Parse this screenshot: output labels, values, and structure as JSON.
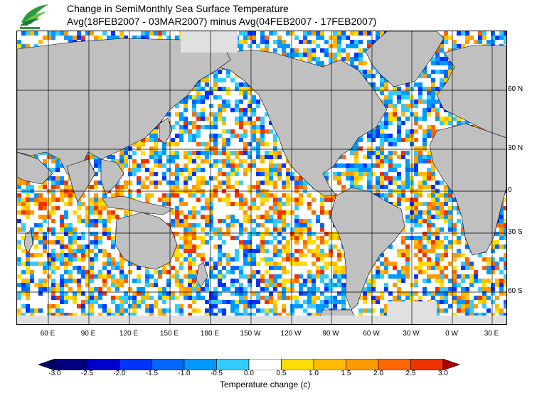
{
  "header": {
    "title": "Change in SemiMonthly Sea Surface Temperature",
    "subtitle": "Avg(18FEB2007 - 03MAR2007) minus Avg(04FEB2007 - 17FEB2007)"
  },
  "map": {
    "lat_labels": [
      "60 N",
      "30 N",
      "0",
      "30 S",
      "60 S"
    ],
    "lon_labels": [
      "60 E",
      "90 E",
      "120 E",
      "150 E",
      "180 E",
      "150 W",
      "120 W",
      "90 W",
      "60 W",
      "30 W",
      "0 W",
      "30 E"
    ],
    "land_color": "#c0c0c0",
    "ice_color": "#e0e0e0"
  },
  "colorbar": {
    "title": "Temperature change  (c)",
    "ticks": [
      "-3.0",
      "-2.5",
      "-2.0",
      "-1.5",
      "-1.0",
      "-0.5",
      "0.0",
      "0.5",
      "1.0",
      "1.5",
      "2.0",
      "2.5",
      "3.0"
    ],
    "colors": [
      "#00007f",
      "#0000cc",
      "#0033ff",
      "#0066ff",
      "#0099ff",
      "#33ccff",
      "#ffffff",
      "#ffdd00",
      "#ffbb00",
      "#ff9900",
      "#ff6600",
      "#ee3300",
      "#cc0000"
    ],
    "under_color": "#000066",
    "over_color": "#aa0000"
  }
}
